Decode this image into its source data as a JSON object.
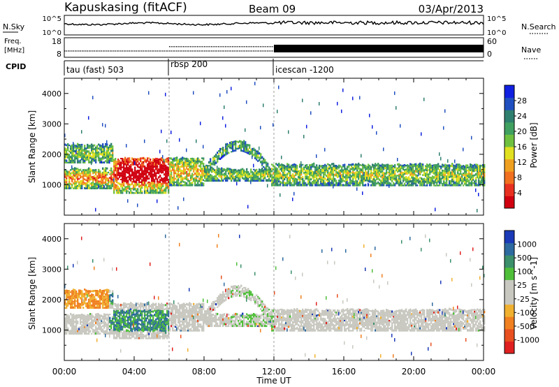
{
  "header": {
    "station": "Kapuskasing (fitACF)",
    "beam": "Beam 09",
    "date": "03/Apr/2013"
  },
  "noise_panel": {
    "left_label": "N.Sky",
    "right_label": "N.Search",
    "ticks_left": [
      "10^5",
      "10^0"
    ],
    "ticks_right": [
      "10^5",
      "10^0"
    ],
    "legend_style": "dotted"
  },
  "freq_panel": {
    "left_label_line1": "Freq.",
    "left_label_line2": "[MHz]",
    "ticks_left": [
      "18",
      "8"
    ],
    "right_label": "Nave",
    "ticks_right": [
      "60",
      "0"
    ],
    "legend_style": "dotted"
  },
  "cpid_panel": {
    "label": "CPID",
    "segments": [
      {
        "name": "tau (fast) 503",
        "start_hour": 0
      },
      {
        "name": "rbsp 200",
        "start_hour": 6
      },
      {
        "name": "icescan -1200",
        "start_hour": 12
      }
    ]
  },
  "chart_data": [
    {
      "type": "heatmap",
      "panel": "power",
      "ylabel": "Slant Range [km]",
      "ylim": [
        0,
        4500
      ],
      "yticks": [
        "1000",
        "2000",
        "3000",
        "4000"
      ],
      "xlim": [
        0,
        24
      ],
      "colorbar": {
        "label": "Power [dB]",
        "labels": [
          "4",
          "8",
          "12",
          "16",
          "20",
          "24",
          "28"
        ],
        "colors": [
          "#1020e0",
          "#2050c0",
          "#2f7f6f",
          "#40a060",
          "#70c040",
          "#e0e020",
          "#f0a020",
          "#f07020",
          "#e83020",
          "#d00010"
        ]
      }
    },
    {
      "type": "heatmap",
      "panel": "velocity",
      "ylabel": "Slant Range [km]",
      "ylim": [
        0,
        4500
      ],
      "yticks": [
        "1000",
        "2000",
        "3000",
        "4000"
      ],
      "xlim": [
        0,
        24
      ],
      "colorbar": {
        "label": "Velocity [m s^-1]",
        "labels": [
          "1000",
          "500",
          "100",
          "25",
          "-25",
          "-100",
          "-500",
          "-1000"
        ],
        "colors": [
          "#1a3ab8",
          "#2d6a9f",
          "#3b8f6b",
          "#4fbf3a",
          "#c8c8c0",
          "#c8c8c0",
          "#f0b030",
          "#f08020",
          "#e85020",
          "#e02020"
        ]
      }
    }
  ],
  "x_axis": {
    "label": "Time UT",
    "ticks": [
      "00:00",
      "04:00",
      "08:00",
      "12:00",
      "16:00",
      "20:00",
      "00:00"
    ]
  }
}
